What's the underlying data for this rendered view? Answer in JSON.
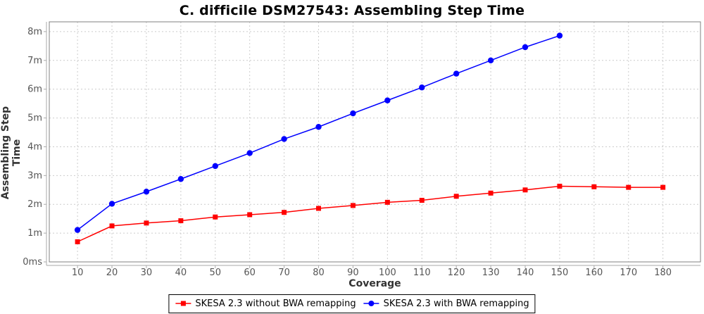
{
  "title": "C. difficile DSM27543: Assembling Step Time",
  "chart_data": {
    "type": "line",
    "title": "C. difficile DSM27543: Assembling Step Time",
    "xlabel": "Coverage",
    "ylabel": "Assembling Step Time",
    "y_unit": "minutes",
    "xlim": [
      1.8,
      190.9
    ],
    "ylim": [
      0,
      8.34
    ],
    "grid": "dashed, both axes",
    "legend_position": "bottom-center",
    "x_ticks": [
      10,
      20,
      30,
      40,
      50,
      60,
      70,
      80,
      90,
      100,
      110,
      120,
      130,
      140,
      150,
      160,
      170,
      180
    ],
    "y_ticks": [
      {
        "value": 0,
        "label": "0ms"
      },
      {
        "value": 1,
        "label": "1m"
      },
      {
        "value": 2,
        "label": "2m"
      },
      {
        "value": 3,
        "label": "3m"
      },
      {
        "value": 4,
        "label": "4m"
      },
      {
        "value": 5,
        "label": "5m"
      },
      {
        "value": 6,
        "label": "6m"
      },
      {
        "value": 7,
        "label": "7m"
      },
      {
        "value": 8,
        "label": "8m"
      }
    ],
    "series": [
      {
        "name": "SKESA 2.3 without BWA remapping",
        "color": "#ff0000",
        "marker": "square",
        "x": [
          10,
          20,
          30,
          40,
          50,
          60,
          70,
          80,
          90,
          100,
          110,
          120,
          130,
          140,
          150,
          160,
          170,
          180
        ],
        "values": [
          0.7,
          1.25,
          1.35,
          1.43,
          1.56,
          1.64,
          1.72,
          1.86,
          1.96,
          2.07,
          2.14,
          2.28,
          2.39,
          2.5,
          2.63,
          2.61,
          2.59,
          2.59
        ]
      },
      {
        "name": "SKESA 2.3 with BWA remapping",
        "color": "#0000ff",
        "marker": "circle",
        "x": [
          10,
          20,
          30,
          40,
          50,
          60,
          70,
          80,
          90,
          100,
          110,
          120,
          130,
          140,
          150
        ],
        "values": [
          1.11,
          2.02,
          2.44,
          2.88,
          3.33,
          3.78,
          4.27,
          4.69,
          5.16,
          5.61,
          6.06,
          6.54,
          7.0,
          7.46,
          7.86
        ]
      }
    ],
    "style": {
      "grid_color": "#cccccc",
      "plot_border_color": "#808080",
      "axis_line_color": "#aaaaaa",
      "tick_label_color": "#555555",
      "background": "#ffffff"
    }
  }
}
